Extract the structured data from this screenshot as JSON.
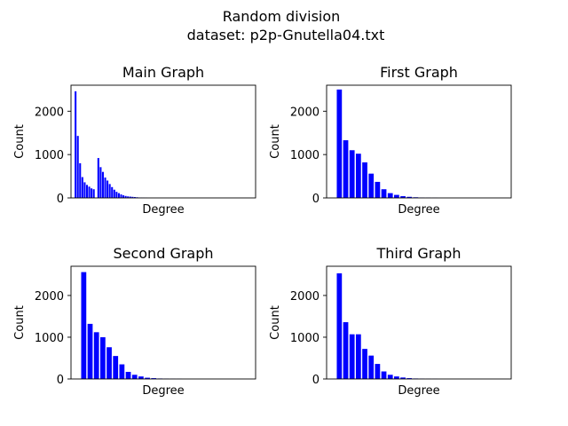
{
  "figure": {
    "title_line1": "Random division",
    "title_line2": "dataset: p2p-Gnutella04.txt",
    "bar_color": "#0000ff"
  },
  "chart_data": [
    {
      "type": "bar",
      "title": "Main Graph",
      "xlabel": "Degree",
      "ylabel": "Count",
      "xlim": [
        -1,
        80
      ],
      "ylim": [
        0,
        2600
      ],
      "yticks": [
        0,
        1000,
        2000
      ],
      "grid": false,
      "x": [
        1,
        2,
        3,
        4,
        5,
        6,
        7,
        8,
        9,
        10,
        11,
        12,
        13,
        14,
        15,
        16,
        17,
        18,
        19,
        20,
        21,
        22,
        23,
        24,
        25,
        26,
        27,
        28,
        29,
        30,
        31,
        32
      ],
      "values": [
        2460,
        1430,
        800,
        480,
        360,
        300,
        260,
        220,
        200,
        0,
        920,
        710,
        600,
        470,
        400,
        320,
        250,
        190,
        140,
        110,
        80,
        60,
        45,
        35,
        30,
        25,
        20,
        15,
        10,
        8,
        6,
        5
      ]
    },
    {
      "type": "bar",
      "title": "First Graph",
      "xlabel": "Degree",
      "ylabel": "Count",
      "xlim": [
        -1,
        28
      ],
      "ylim": [
        0,
        2600
      ],
      "yticks": [
        0,
        1000,
        2000
      ],
      "grid": false,
      "x": [
        1,
        2,
        3,
        4,
        5,
        6,
        7,
        8,
        9,
        10,
        11,
        12,
        13,
        14,
        15,
        16
      ],
      "values": [
        2500,
        1330,
        1100,
        1020,
        820,
        560,
        370,
        200,
        110,
        70,
        40,
        25,
        15,
        10,
        6,
        4
      ]
    },
    {
      "type": "bar",
      "title": "Second Graph",
      "xlabel": "Degree",
      "ylabel": "Count",
      "xlim": [
        -1,
        28
      ],
      "ylim": [
        0,
        2700
      ],
      "yticks": [
        0,
        1000,
        2000
      ],
      "grid": false,
      "x": [
        1,
        2,
        3,
        4,
        5,
        6,
        7,
        8,
        9,
        10,
        11,
        12,
        13,
        14,
        15,
        16
      ],
      "values": [
        2560,
        1320,
        1120,
        1000,
        760,
        550,
        350,
        170,
        100,
        60,
        30,
        20,
        12,
        8,
        5,
        3
      ]
    },
    {
      "type": "bar",
      "title": "Third Graph",
      "xlabel": "Degree",
      "ylabel": "Count",
      "xlim": [
        -1,
        28
      ],
      "ylim": [
        0,
        2700
      ],
      "yticks": [
        0,
        1000,
        2000
      ],
      "grid": false,
      "x": [
        1,
        2,
        3,
        4,
        5,
        6,
        7,
        8,
        9,
        10,
        11,
        12,
        13,
        14,
        15,
        16
      ],
      "values": [
        2530,
        1360,
        1070,
        1070,
        720,
        560,
        360,
        180,
        100,
        60,
        35,
        20,
        12,
        8,
        5,
        3
      ]
    }
  ]
}
